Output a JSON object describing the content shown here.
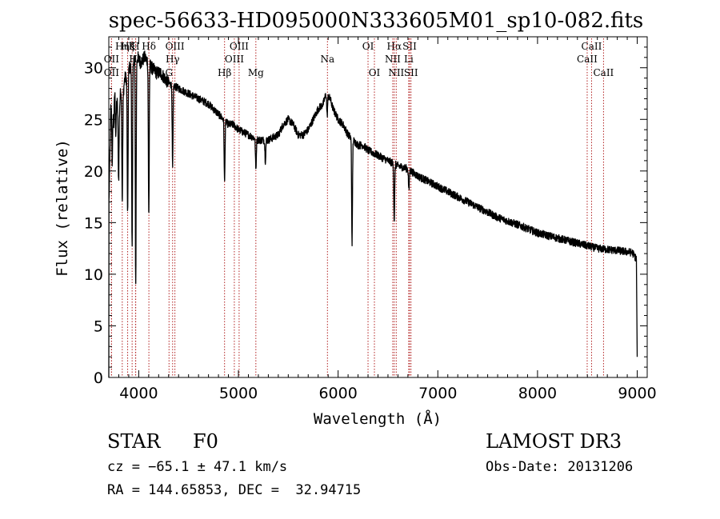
{
  "chart_data": {
    "type": "line",
    "title": "spec-56633-HD095000N333605M01_sp10-082.fits",
    "xlabel": "Wavelength (Å)",
    "ylabel": "Flux (relative)",
    "xlim": [
      3700,
      9100
    ],
    "ylim": [
      0,
      33
    ],
    "xticks": [
      4000,
      5000,
      6000,
      7000,
      8000,
      9000
    ],
    "yticks": [
      0,
      5,
      10,
      15,
      20,
      25,
      30
    ],
    "line_color": "#000000",
    "marker_color": "#b22222",
    "series": [
      {
        "name": "spectrum",
        "anchors": [
          [
            3700,
            16
          ],
          [
            3720,
            26
          ],
          [
            3740,
            27
          ],
          [
            3760,
            28
          ],
          [
            3780,
            27
          ],
          [
            3800,
            25
          ],
          [
            3820,
            28
          ],
          [
            3840,
            27
          ],
          [
            3860,
            29
          ],
          [
            3880,
            29
          ],
          [
            3900,
            30
          ],
          [
            3920,
            30
          ],
          [
            3950,
            31
          ],
          [
            3990,
            31
          ],
          [
            4020,
            30.5
          ],
          [
            4060,
            31
          ],
          [
            4100,
            30.5
          ],
          [
            4130,
            30
          ],
          [
            4180,
            29.5
          ],
          [
            4220,
            29.5
          ],
          [
            4260,
            29
          ],
          [
            4300,
            28.5
          ],
          [
            4400,
            28
          ],
          [
            4500,
            27.5
          ],
          [
            4600,
            27
          ],
          [
            4700,
            26.5
          ],
          [
            4800,
            25.5
          ],
          [
            4850,
            25
          ],
          [
            4900,
            24.5
          ],
          [
            4950,
            24.5
          ],
          [
            5000,
            24
          ],
          [
            5100,
            23.5
          ],
          [
            5200,
            23
          ],
          [
            5300,
            23
          ],
          [
            5400,
            23.5
          ],
          [
            5450,
            24.5
          ],
          [
            5500,
            25
          ],
          [
            5550,
            24.5
          ],
          [
            5600,
            23.5
          ],
          [
            5650,
            23.5
          ],
          [
            5700,
            24
          ],
          [
            5750,
            25
          ],
          [
            5800,
            26
          ],
          [
            5850,
            26.5
          ],
          [
            5880,
            27.5
          ],
          [
            5920,
            27
          ],
          [
            5950,
            26
          ],
          [
            6000,
            25
          ],
          [
            6050,
            24.5
          ],
          [
            6100,
            23.5
          ],
          [
            6150,
            23
          ],
          [
            6200,
            22.5
          ],
          [
            6250,
            22.5
          ],
          [
            6300,
            22
          ],
          [
            6400,
            21.5
          ],
          [
            6500,
            21
          ],
          [
            6600,
            20.5
          ],
          [
            6700,
            20.2
          ],
          [
            6800,
            19.5
          ],
          [
            6900,
            19
          ],
          [
            7000,
            18.5
          ],
          [
            7200,
            17.5
          ],
          [
            7400,
            16.5
          ],
          [
            7600,
            15.5
          ],
          [
            7800,
            14.8
          ],
          [
            8000,
            14
          ],
          [
            8200,
            13.5
          ],
          [
            8400,
            13
          ],
          [
            8600,
            12.5
          ],
          [
            8800,
            12.3
          ],
          [
            8950,
            12.1
          ],
          [
            8990,
            11.5
          ]
        ],
        "absorption": [
          [
            3735,
            6
          ],
          [
            3750,
            3
          ],
          [
            3770,
            4
          ],
          [
            3798,
            6
          ],
          [
            3835,
            10
          ],
          [
            3889,
            14
          ],
          [
            3934,
            18
          ],
          [
            3970,
            22
          ],
          [
            4101,
            15
          ],
          [
            4340,
            8
          ],
          [
            4861,
            6
          ],
          [
            5175,
            3
          ],
          [
            5270,
            2
          ],
          [
            5890,
            2
          ],
          [
            6140,
            10
          ],
          [
            6563,
            5.5
          ],
          [
            6710,
            2
          ]
        ],
        "edges": [
          {
            "x": 3700,
            "y": 0
          },
          {
            "x": 9000,
            "y": 2
          }
        ]
      }
    ],
    "lines": [
      {
        "label": "Hη",
        "wavelength": 3835,
        "row": 1
      },
      {
        "label": "Hζ",
        "wavelength": 3889,
        "row": 1
      },
      {
        "label": "K",
        "wavelength": 3934,
        "row": 1
      },
      {
        "label": "H",
        "wavelength": 3968,
        "row": 1
      },
      {
        "label": "Hδ",
        "wavelength": 4102,
        "row": 1
      },
      {
        "label": "OIII",
        "wavelength": 4363,
        "row": 1
      },
      {
        "label": "OIII",
        "wavelength": 5007,
        "row": 1
      },
      {
        "label": "OI",
        "wavelength": 6300,
        "row": 1
      },
      {
        "label": "Hα",
        "wavelength": 6563,
        "row": 1
      },
      {
        "label": "SII",
        "wavelength": 6717,
        "row": 1
      },
      {
        "label": "CaII",
        "wavelength": 8542,
        "row": 1
      },
      {
        "label": "OII",
        "wavelength": 3727,
        "row": 2
      },
      {
        "label": "Hε",
        "wavelength": 3970,
        "row": 2
      },
      {
        "label": "Hγ",
        "wavelength": 4340,
        "row": 2
      },
      {
        "label": "OIII",
        "wavelength": 4959,
        "row": 2
      },
      {
        "label": "Na",
        "wavelength": 5893,
        "row": 2
      },
      {
        "label": "NII",
        "wavelength": 6548,
        "row": 2
      },
      {
        "label": "Li",
        "wavelength": 6708,
        "row": 2
      },
      {
        "label": "CaII",
        "wavelength": 8498,
        "row": 2
      },
      {
        "label": "OII",
        "wavelength": 3727,
        "row": 3
      },
      {
        "label": "G",
        "wavelength": 4304,
        "row": 3
      },
      {
        "label": "Hβ",
        "wavelength": 4861,
        "row": 3
      },
      {
        "label": "Mg",
        "wavelength": 5175,
        "row": 3
      },
      {
        "label": "OI",
        "wavelength": 6364,
        "row": 3
      },
      {
        "label": "NII",
        "wavelength": 6583,
        "row": 3
      },
      {
        "label": "SII",
        "wavelength": 6731,
        "row": 3
      },
      {
        "label": "CaII",
        "wavelength": 8662,
        "row": 3
      }
    ]
  },
  "info": {
    "object_class": "STAR",
    "subclass": "F0",
    "survey": "LAMOST DR3",
    "redshift": "cz = −65.1 ± 47.1 km/s",
    "coordinates": "RA = 144.65853, DEC =  32.94715",
    "obs_date": "Obs-Date: 20131206"
  }
}
